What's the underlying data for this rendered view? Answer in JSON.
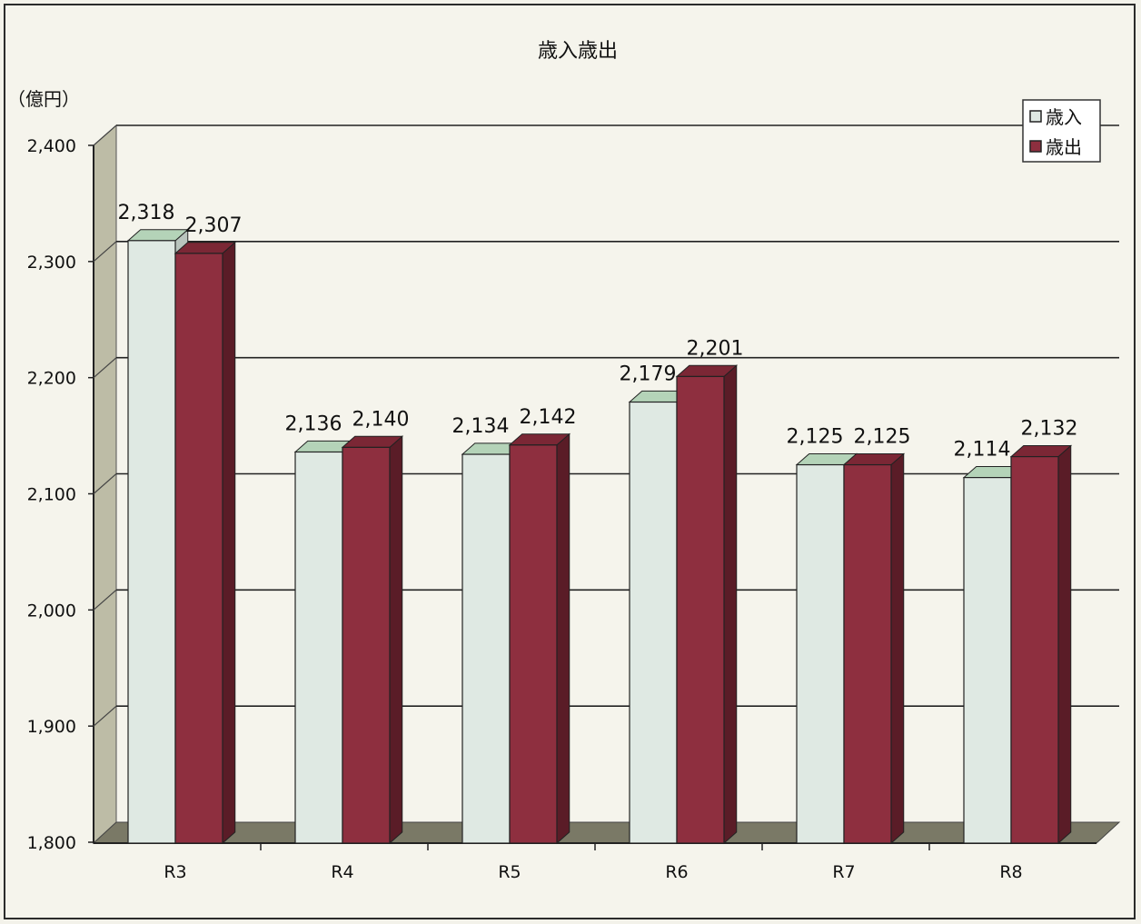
{
  "chart_data": {
    "type": "bar",
    "title": "歳入歳出",
    "ylabel": "（億円）",
    "xlabel": "",
    "categories": [
      "R3",
      "R4",
      "R5",
      "R6",
      "R7",
      "R8"
    ],
    "series": [
      {
        "name": "歳入",
        "values": [
          2318,
          2136,
          2134,
          2179,
          2125,
          2114
        ],
        "labels": [
          "2,318",
          "2,136",
          "2,134",
          "2,179",
          "2,125",
          "2,114"
        ],
        "color": "#dfe9e3",
        "top_color": "#b4d3b8"
      },
      {
        "name": "歳出",
        "values": [
          2307,
          2140,
          2142,
          2201,
          2125,
          2132
        ],
        "labels": [
          "2,307",
          "2,140",
          "2,142",
          "2,201",
          "2,125",
          "2,132"
        ],
        "color": "#8e2f3f",
        "top_color": "#7b2735"
      }
    ],
    "ylim": [
      1800,
      2400
    ],
    "yticks": [
      1800,
      1900,
      2000,
      2100,
      2200,
      2300,
      2400
    ],
    "ytick_labels": [
      "1,800",
      "1,900",
      "2,000",
      "2,100",
      "2,200",
      "2,300",
      "2,400"
    ],
    "grid": true,
    "legend": "top-right",
    "style": "3d"
  }
}
